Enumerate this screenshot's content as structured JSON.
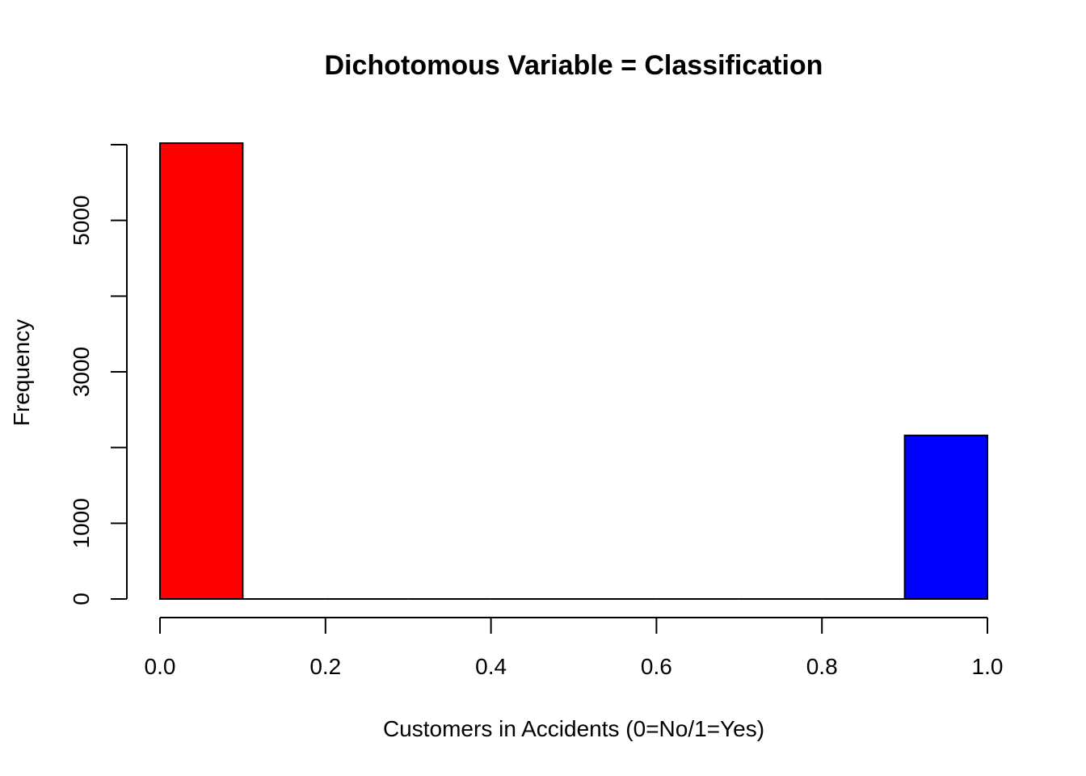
{
  "chart_data": {
    "type": "bar",
    "title": "Dichotomous Variable = Classification",
    "xlabel": "Customers in Accidents (0=No/1=Yes)",
    "ylabel": "Frequency",
    "xlim": [
      0,
      1
    ],
    "ylim": [
      0,
      6000
    ],
    "x_ticks": [
      0.0,
      0.2,
      0.4,
      0.6,
      0.8,
      1.0
    ],
    "x_tick_labels": [
      "0.0",
      "0.2",
      "0.4",
      "0.6",
      "0.8",
      "1.0"
    ],
    "y_ticks": [
      0,
      1000,
      2000,
      3000,
      4000,
      5000,
      6000
    ],
    "y_tick_labels": [
      "0",
      "1000",
      "",
      "3000",
      "",
      "5000",
      ""
    ],
    "bins": [
      {
        "x0": 0.0,
        "x1": 0.1,
        "value": 6020,
        "color": "#ff0000"
      },
      {
        "x0": 0.1,
        "x1": 0.2,
        "value": 0,
        "color": "#ffffff"
      },
      {
        "x0": 0.2,
        "x1": 0.3,
        "value": 0,
        "color": "#ffffff"
      },
      {
        "x0": 0.3,
        "x1": 0.4,
        "value": 0,
        "color": "#ffffff"
      },
      {
        "x0": 0.4,
        "x1": 0.5,
        "value": 0,
        "color": "#ffffff"
      },
      {
        "x0": 0.5,
        "x1": 0.6,
        "value": 0,
        "color": "#ffffff"
      },
      {
        "x0": 0.6,
        "x1": 0.7,
        "value": 0,
        "color": "#ffffff"
      },
      {
        "x0": 0.7,
        "x1": 0.8,
        "value": 0,
        "color": "#ffffff"
      },
      {
        "x0": 0.8,
        "x1": 0.9,
        "value": 0,
        "color": "#ffffff"
      },
      {
        "x0": 0.9,
        "x1": 1.0,
        "value": 2160,
        "color": "#0000ff"
      }
    ],
    "grid": false,
    "legend": "none"
  }
}
